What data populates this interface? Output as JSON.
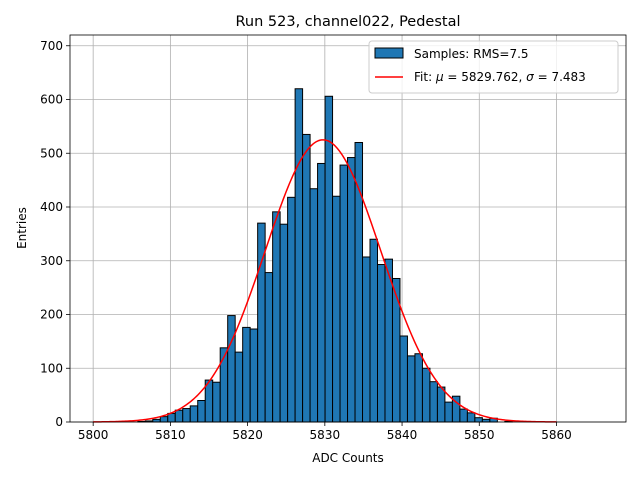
{
  "chart_data": {
    "type": "bar",
    "title": "Run 523, channel022, Pedestal",
    "xlabel": "ADC Counts",
    "ylabel": "Entries",
    "xlim": [
      5797,
      5869
    ],
    "ylim": [
      0,
      720
    ],
    "xticks": [
      5800,
      5810,
      5820,
      5830,
      5840,
      5850,
      5860
    ],
    "yticks": [
      0,
      100,
      200,
      300,
      400,
      500,
      600,
      700
    ],
    "grid": true,
    "legend_position": "top-right",
    "histogram": {
      "name": "Samples: RMS=7.5",
      "color": "#1f77b4",
      "bin_start": 5801.9,
      "bin_width": 0.97,
      "counts": [
        0,
        0,
        0,
        0,
        1,
        2,
        5,
        10,
        16,
        22,
        25,
        30,
        40,
        78,
        74,
        138,
        198,
        130,
        176,
        173,
        370,
        278,
        391,
        368,
        418,
        620,
        535,
        434,
        481,
        606,
        420,
        478,
        492,
        520,
        307,
        340,
        293,
        303,
        267,
        160,
        123,
        127,
        100,
        75,
        65,
        37,
        48,
        24,
        17,
        8,
        5,
        7,
        0,
        1,
        0,
        0,
        0,
        0,
        0,
        0,
        0,
        0,
        0,
        0,
        0
      ]
    },
    "fit": {
      "name": "Fit: μ = 5829.762, σ = 7.483",
      "label_prefix": "Fit: ",
      "label_mu_symbol": "μ",
      "label_mu_value": " = 5829.762, ",
      "label_sigma_symbol": "σ",
      "label_sigma_value": " = 7.483",
      "color": "#ff0000",
      "mu": 5829.762,
      "sigma": 7.483,
      "amplitude": 525,
      "x_range": [
        5800,
        5860
      ]
    }
  }
}
